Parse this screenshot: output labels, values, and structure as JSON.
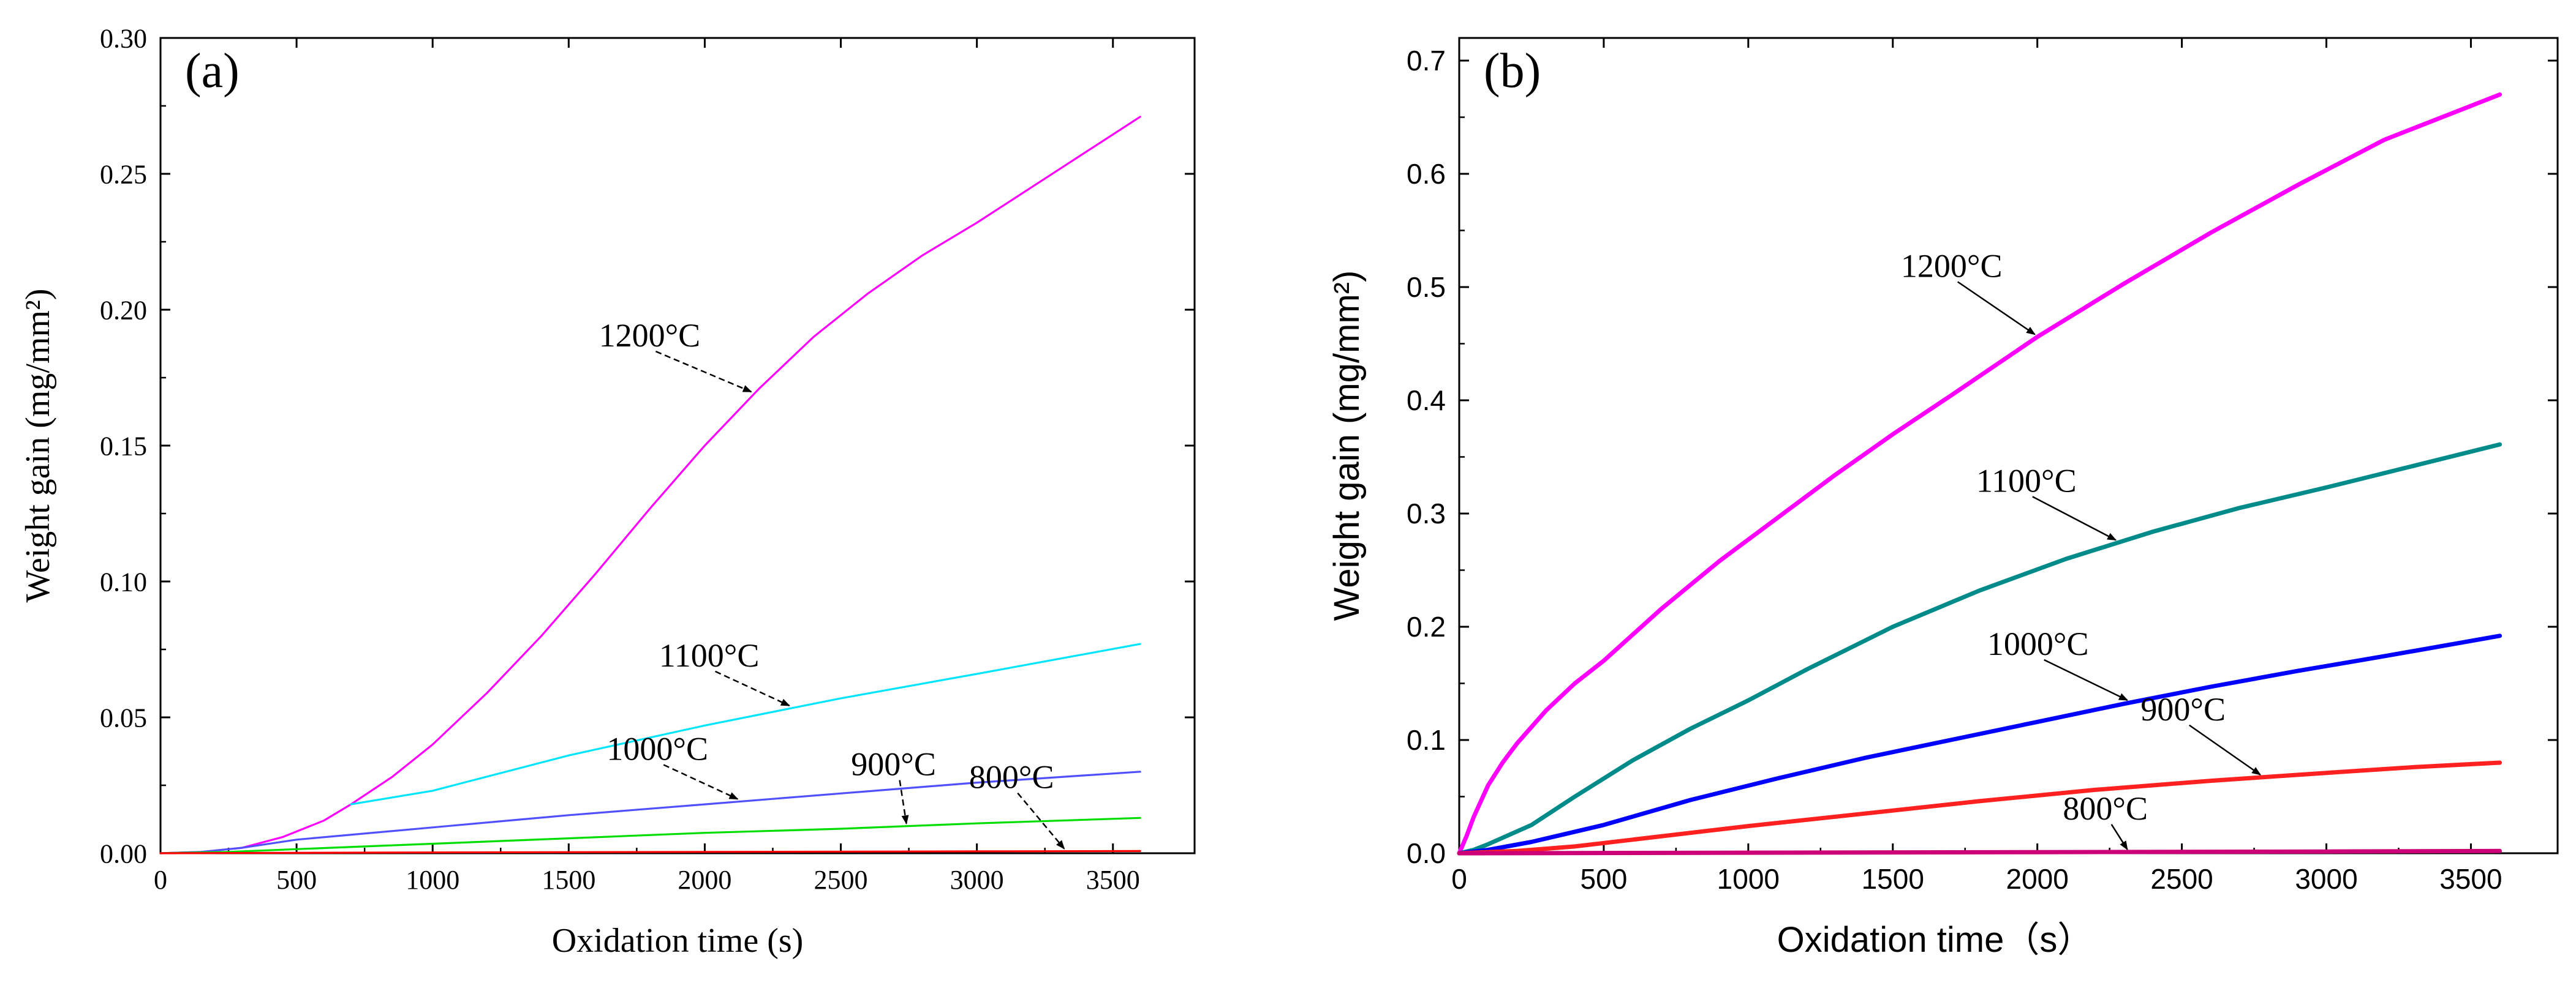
{
  "chart_data": [
    {
      "id": "a",
      "type": "line",
      "panel_label": "(a)",
      "xlabel": "Oxidation time (s)",
      "ylabel": "Weight gain (mg/mm²)",
      "xlim": [
        0,
        3800
      ],
      "ylim": [
        0,
        0.3
      ],
      "xticks": [
        0,
        500,
        1000,
        1500,
        2000,
        2500,
        3000,
        3500
      ],
      "xtick_labels": [
        "0",
        "500",
        "1000",
        "1500",
        "2000",
        "2500",
        "3000",
        "3500"
      ],
      "yticks": [
        0.0,
        0.05,
        0.1,
        0.15,
        0.2,
        0.25,
        0.3
      ],
      "ytick_labels": [
        "0.00",
        "0.05",
        "0.10",
        "0.15",
        "0.20",
        "0.25",
        "0.30"
      ],
      "series": [
        {
          "name": "1200°C",
          "color": "#ff00ff",
          "x": [
            0,
            150,
            300,
            450,
            600,
            700,
            850,
            1000,
            1200,
            1400,
            1600,
            1800,
            2000,
            2200,
            2400,
            2600,
            2800,
            3000,
            3200,
            3400,
            3600
          ],
          "y": [
            0,
            0.0005,
            0.002,
            0.006,
            0.012,
            0.018,
            0.028,
            0.04,
            0.059,
            0.08,
            0.103,
            0.127,
            0.15,
            0.171,
            0.19,
            0.206,
            0.22,
            0.232,
            0.245,
            0.258,
            0.271
          ]
        },
        {
          "name": "1100°C",
          "color": "#00e5ff",
          "x": [
            700,
            1000,
            1500,
            2000,
            2500,
            3000,
            3600
          ],
          "y": [
            0.018,
            0.023,
            0.036,
            0.047,
            0.057,
            0.066,
            0.077
          ]
        },
        {
          "name": "1000°C",
          "color": "#5050ff",
          "x": [
            0,
            150,
            300,
            500,
            1000,
            1500,
            2000,
            2500,
            3000,
            3600
          ],
          "y": [
            0,
            0.0005,
            0.002,
            0.005,
            0.0095,
            0.014,
            0.018,
            0.022,
            0.026,
            0.03
          ]
        },
        {
          "name": "900°C",
          "color": "#00dd00",
          "x": [
            0,
            250,
            500,
            1000,
            1500,
            2000,
            2500,
            3000,
            3600
          ],
          "y": [
            0,
            0.0005,
            0.0015,
            0.0035,
            0.0055,
            0.0075,
            0.009,
            0.011,
            0.013
          ]
        },
        {
          "name": "800°C",
          "color": "#ff0000",
          "x": [
            0,
            1000,
            2000,
            3000,
            3600
          ],
          "y": [
            0,
            0.0003,
            0.0005,
            0.0007,
            0.0008
          ]
        }
      ],
      "annotations": [
        {
          "text": "1200°C",
          "series": "1200°C",
          "at_x": 2180
        },
        {
          "text": "1100°C",
          "series": "1100°C",
          "at_x": 2320
        },
        {
          "text": "1000°C",
          "series": "1000°C",
          "at_x": 2130
        },
        {
          "text": "900°C",
          "series": "900°C",
          "at_x": 2750
        },
        {
          "text": "800°C",
          "series": "800°C",
          "at_x": 3330
        }
      ]
    },
    {
      "id": "b",
      "type": "line",
      "panel_label": "(b)",
      "xlabel": "Oxidation time（s）",
      "ylabel": "Weight gain (mg/mm²)",
      "xlim": [
        0,
        3800
      ],
      "ylim": [
        0,
        0.72
      ],
      "xticks": [
        0,
        500,
        1000,
        1500,
        2000,
        2500,
        3000,
        3500
      ],
      "xtick_labels": [
        "0",
        "500",
        "1000",
        "1500",
        "2000",
        "2500",
        "3000",
        "3500"
      ],
      "yticks": [
        0.0,
        0.1,
        0.2,
        0.3,
        0.4,
        0.5,
        0.6,
        0.7
      ],
      "ytick_labels": [
        "0.0",
        "0.1",
        "0.2",
        "0.3",
        "0.4",
        "0.5",
        "0.6",
        "0.7"
      ],
      "series": [
        {
          "name": "1200°C",
          "color": "#ff00ff",
          "x": [
            0,
            25,
            50,
            100,
            150,
            200,
            300,
            400,
            500,
            700,
            900,
            1100,
            1300,
            1500,
            1700,
            2000,
            2300,
            2600,
            2900,
            3200,
            3600
          ],
          "y": [
            0,
            0.015,
            0.032,
            0.06,
            0.08,
            0.097,
            0.126,
            0.15,
            0.17,
            0.216,
            0.258,
            0.296,
            0.334,
            0.37,
            0.404,
            0.456,
            0.503,
            0.548,
            0.59,
            0.63,
            0.67
          ]
        },
        {
          "name": "1100°C",
          "color": "#008b8b",
          "x": [
            0,
            50,
            100,
            250,
            400,
            600,
            800,
            1000,
            1200,
            1500,
            1800,
            2100,
            2400,
            2700,
            3000,
            3300,
            3600
          ],
          "y": [
            0,
            0.003,
            0.008,
            0.025,
            0.05,
            0.082,
            0.11,
            0.135,
            0.162,
            0.2,
            0.232,
            0.26,
            0.284,
            0.305,
            0.323,
            0.342,
            0.361
          ]
        },
        {
          "name": "1000°C",
          "color": "#0000ff",
          "x": [
            0,
            100,
            250,
            500,
            800,
            1100,
            1400,
            1700,
            2000,
            2300,
            2600,
            2900,
            3200,
            3600
          ],
          "y": [
            0,
            0.003,
            0.01,
            0.025,
            0.047,
            0.066,
            0.084,
            0.1,
            0.116,
            0.132,
            0.147,
            0.161,
            0.174,
            0.192
          ]
        },
        {
          "name": "900°C",
          "color": "#ff2020",
          "x": [
            0,
            200,
            400,
            600,
            1000,
            1400,
            1800,
            2200,
            2600,
            3000,
            3300,
            3600
          ],
          "y": [
            0,
            0.002,
            0.006,
            0.012,
            0.024,
            0.035,
            0.046,
            0.056,
            0.064,
            0.071,
            0.076,
            0.08
          ]
        },
        {
          "name": "800°C",
          "color": "#cc0077",
          "x": [
            0,
            1000,
            2000,
            3000,
            3600
          ],
          "y": [
            0,
            0.0005,
            0.001,
            0.0015,
            0.002
          ]
        }
      ],
      "annotations": [
        {
          "text": "1200°C",
          "series": "1200°C",
          "at_x": 2000
        },
        {
          "text": "1100°C",
          "series": "1100°C",
          "at_x": 2280
        },
        {
          "text": "1000°C",
          "series": "1000°C",
          "at_x": 2320
        },
        {
          "text": "900°C",
          "series": "900°C",
          "at_x": 2780
        },
        {
          "text": "800°C",
          "series": "800°C",
          "at_x": 2320
        }
      ]
    }
  ]
}
